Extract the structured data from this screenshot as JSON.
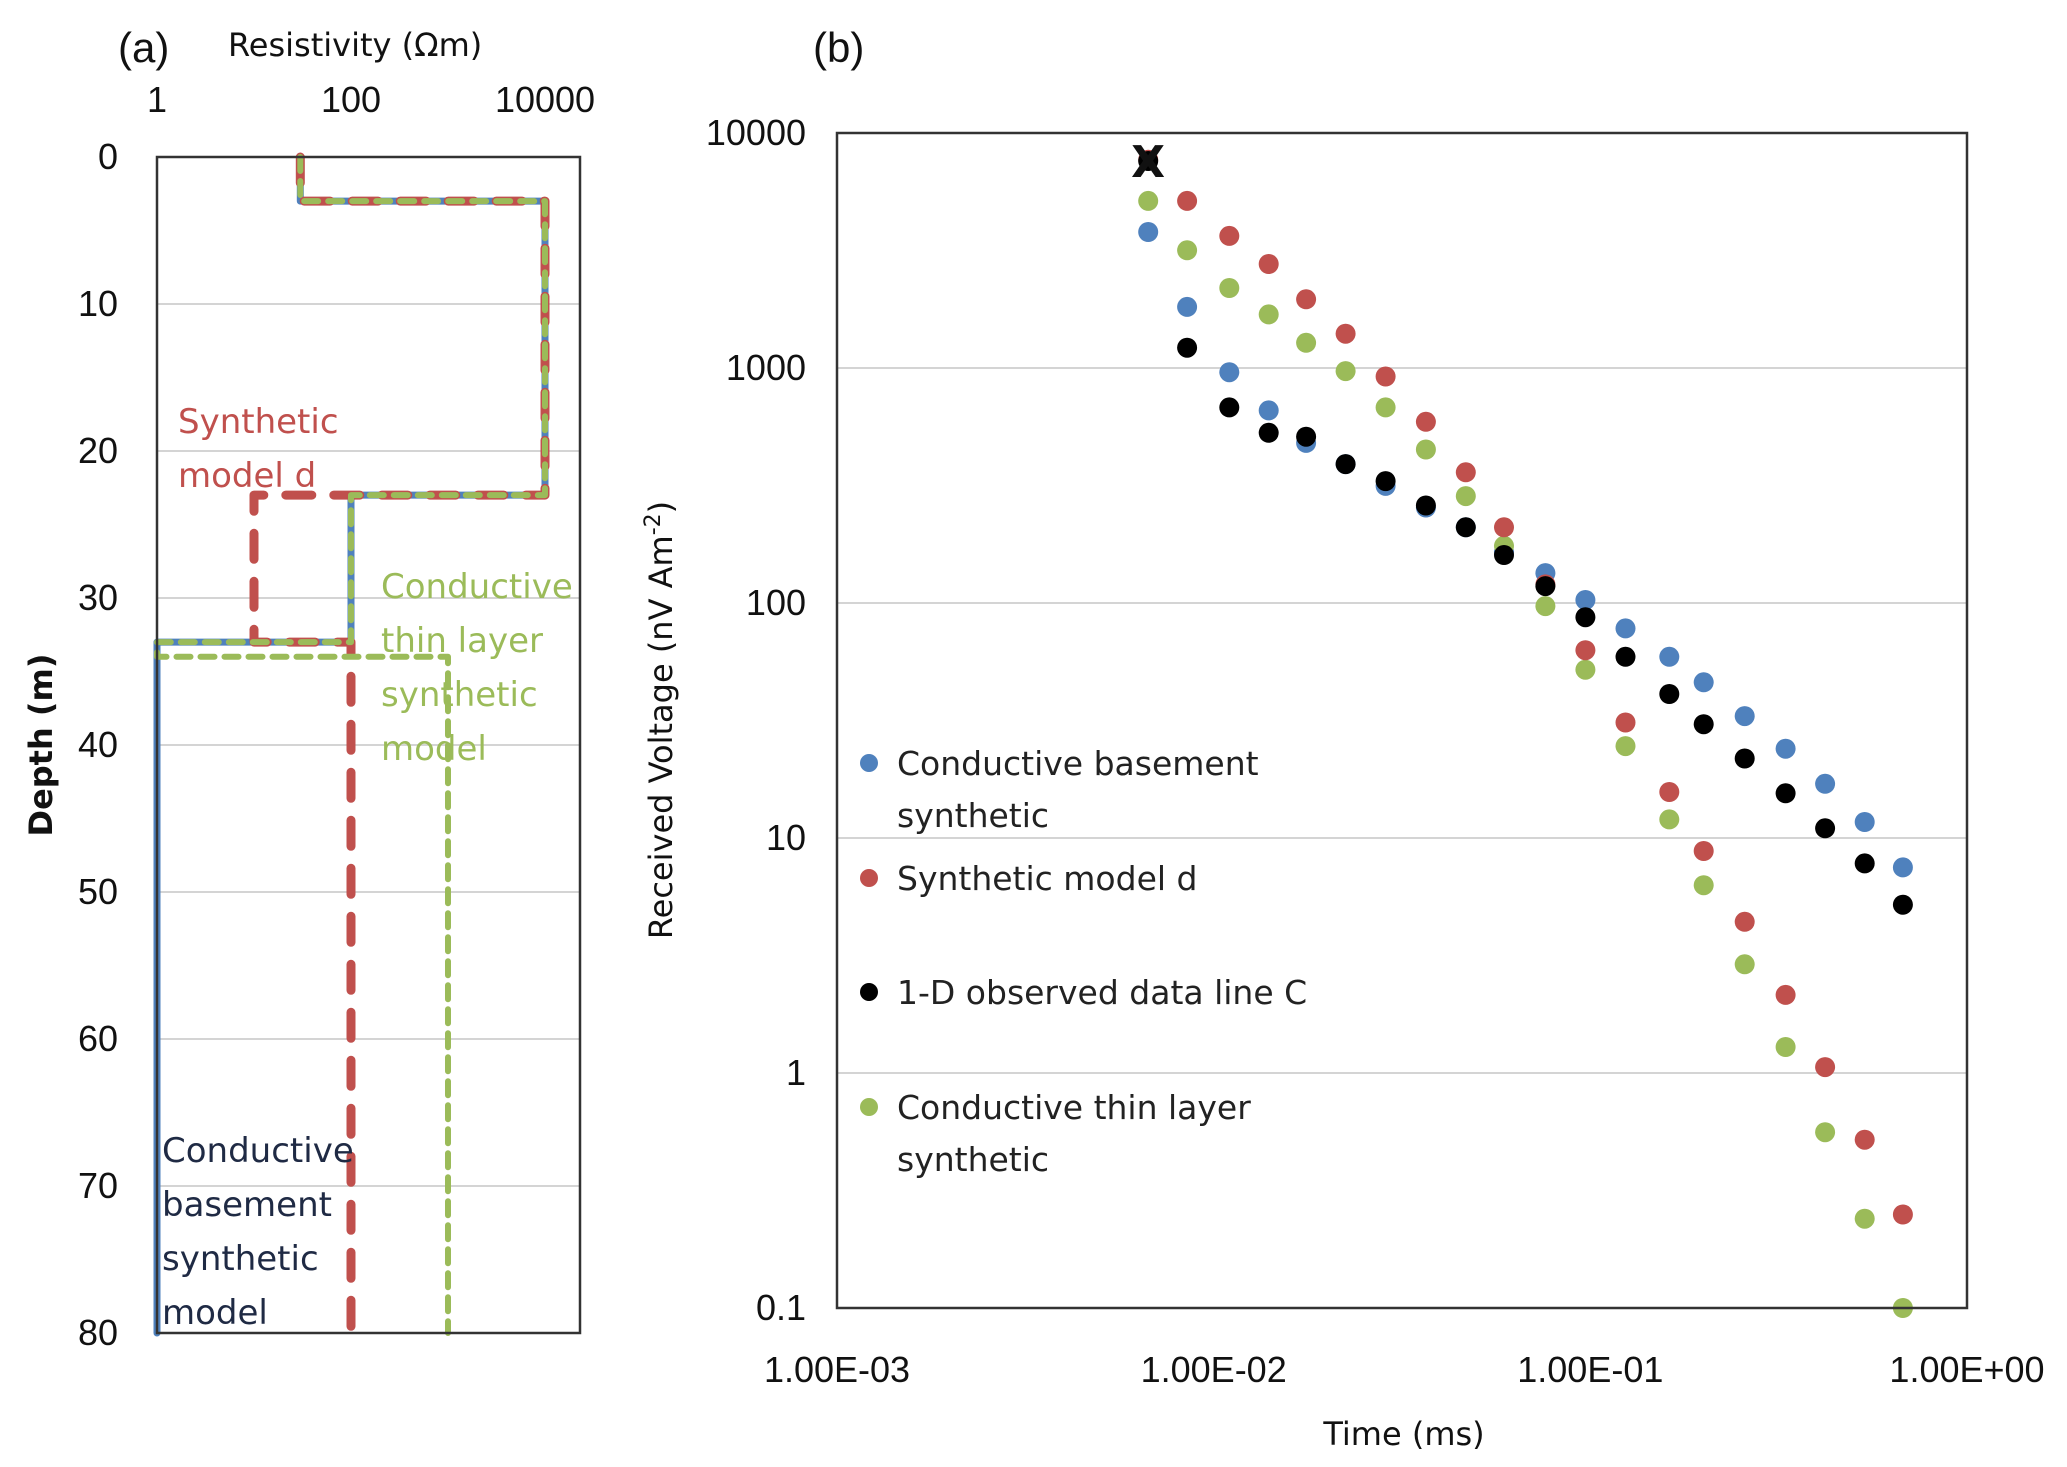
{
  "chart_data": [
    {
      "id": "a",
      "panel_label": "(a)",
      "type": "line",
      "title": "",
      "xlabel": "Resistivity (Ωm)",
      "ylabel": "Depth (m)",
      "xscale": "log",
      "xlim": [
        1,
        23000
      ],
      "ylim": [
        0,
        80
      ],
      "yinverted": true,
      "x_axis_position": "top",
      "xticks": [
        {
          "value": 1,
          "label": "1"
        },
        {
          "value": 100,
          "label": "100"
        },
        {
          "value": 10000,
          "label": "10000"
        }
      ],
      "yticks": [
        {
          "value": 0,
          "label": "0"
        },
        {
          "value": 10,
          "label": "10"
        },
        {
          "value": 20,
          "label": "20"
        },
        {
          "value": 30,
          "label": "30"
        },
        {
          "value": 40,
          "label": "40"
        },
        {
          "value": 50,
          "label": "50"
        },
        {
          "value": 60,
          "label": "60"
        },
        {
          "value": 70,
          "label": "70"
        },
        {
          "value": 80,
          "label": "80"
        }
      ],
      "grid": "horizontal",
      "series": [
        {
          "name": "Conductive basement synthetic model",
          "color": "#4F81BD",
          "style": "solid",
          "points": [
            [
              30,
              0
            ],
            [
              30,
              3
            ],
            [
              10000,
              3
            ],
            [
              10000,
              23
            ],
            [
              100,
              23
            ],
            [
              100,
              33
            ],
            [
              1,
              33
            ],
            [
              1,
              80
            ]
          ]
        },
        {
          "name": "Synthetic model d",
          "color": "#C0504D",
          "style": "long-dash",
          "points": [
            [
              30,
              0
            ],
            [
              30,
              3
            ],
            [
              10000,
              3
            ],
            [
              10000,
              23
            ],
            [
              10,
              23
            ],
            [
              10,
              33
            ],
            [
              100,
              33
            ],
            [
              100,
              80
            ]
          ]
        },
        {
          "name": "Conductive thin layer synthetic model",
          "color": "#9BBB59",
          "style": "short-dash",
          "points": [
            [
              30,
              0
            ],
            [
              30,
              3
            ],
            [
              10000,
              3
            ],
            [
              10000,
              23
            ],
            [
              100,
              23
            ],
            [
              100,
              33
            ],
            [
              1,
              33
            ],
            [
              1,
              34
            ],
            [
              1000,
              34
            ],
            [
              1000,
              80
            ]
          ]
        }
      ],
      "annotations": [
        {
          "lines": [
            "Synthetic",
            "model d"
          ],
          "color": "#C0504D"
        },
        {
          "lines": [
            "Conductive",
            "thin layer",
            "synthetic",
            "model"
          ],
          "color": "#9BBB59"
        },
        {
          "lines": [
            "Conductive",
            "basement",
            "synthetic",
            "model"
          ],
          "color": "#1F2A44"
        }
      ]
    },
    {
      "id": "b",
      "panel_label": "(b)",
      "type": "scatter",
      "title": "",
      "xlabel": "Time (ms)",
      "ylabel": "Received Voltage (nV Am",
      "ylabel_superscript": "-2",
      "ylabel_suffix": ")",
      "xscale": "log",
      "yscale": "log",
      "xlim": [
        0.001,
        1
      ],
      "ylim": [
        0.1,
        10000
      ],
      "xticks": [
        {
          "value": 0.001,
          "label": "1.00E-03"
        },
        {
          "value": 0.01,
          "label": "1.00E-02"
        },
        {
          "value": 0.1,
          "label": "1.00E-01"
        },
        {
          "value": 1,
          "label": "1.00E+00"
        }
      ],
      "yticks": [
        {
          "value": 10000,
          "label": "10000"
        },
        {
          "value": 1000,
          "label": "1000"
        },
        {
          "value": 100,
          "label": "100"
        },
        {
          "value": 10,
          "label": "10"
        },
        {
          "value": 1,
          "label": "1"
        },
        {
          "value": 0.1,
          "label": "0.1"
        }
      ],
      "grid": "horizontal",
      "legend_position": "left-middle",
      "marker_annotation": {
        "label": "X",
        "x": 0.0067,
        "y": 7600
      },
      "x": [
        0.0067,
        0.0085,
        0.011,
        0.014,
        0.0176,
        0.0224,
        0.0286,
        0.0366,
        0.0467,
        0.059,
        0.076,
        0.097,
        0.124,
        0.162,
        0.2,
        0.257,
        0.33,
        0.42,
        0.535,
        0.676
      ],
      "series": [
        {
          "name": "Conductive basement synthetic",
          "legend_lines": [
            "Conductive basement",
            "synthetic"
          ],
          "color": "#4F81BD",
          "values": [
            3790,
            1820,
            960,
            660,
            480,
            390,
            315,
            255,
            210,
            165,
            134,
            103,
            78,
            59,
            46,
            33,
            24,
            17,
            11.7,
            7.5
          ]
        },
        {
          "name": "Synthetic model d",
          "legend_lines": [
            "Synthetic model d"
          ],
          "color": "#C0504D",
          "values": [
            7700,
            5140,
            3650,
            2770,
            1960,
            1400,
            920,
            590,
            360,
            210,
            120,
            63,
            31,
            15.7,
            8.8,
            4.4,
            2.15,
            1.06,
            0.52,
            0.25
          ]
        },
        {
          "name": "1-D observed data line C",
          "legend_lines": [
            "1-D observed data line C"
          ],
          "color": "#000000",
          "values": [
            7600,
            1220,
            680,
            530,
            510,
            390,
            330,
            260,
            210,
            160,
            118,
            87,
            59,
            41,
            30.5,
            21.8,
            15.5,
            11,
            7.8,
            5.2
          ]
        },
        {
          "name": "Conductive thin layer synthetic",
          "legend_lines": [
            "Conductive thin layer",
            "synthetic"
          ],
          "color": "#9BBB59",
          "values": [
            5140,
            3170,
            2190,
            1690,
            1280,
            970,
            680,
            450,
            285,
            175,
            97,
            52,
            24.6,
            12,
            6.3,
            2.9,
            1.29,
            0.56,
            0.24,
            0.1
          ]
        }
      ]
    }
  ]
}
